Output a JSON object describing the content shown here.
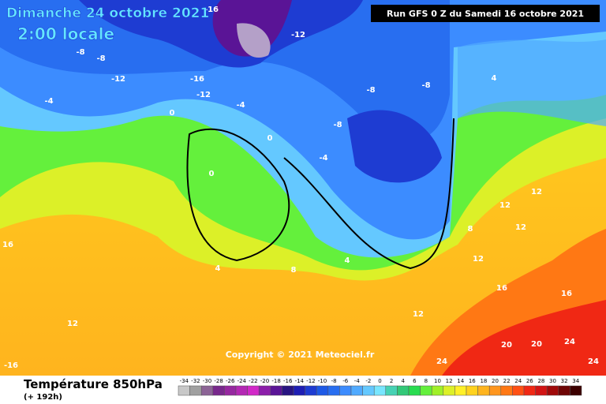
{
  "header": {
    "date": "Dimanche 24 octobre 2021",
    "time": "2:00 locale",
    "run": "Run GFS 0 Z du Samedi 16 octobre 2021"
  },
  "copyright": "Copyright © 2021 Meteociel.fr",
  "footer": {
    "title": "Température 850hPa",
    "lead": "(+ 192h)"
  },
  "legend": {
    "labels": [
      "-34",
      "-32",
      "-30",
      "-28",
      "-26",
      "-24",
      "-22",
      "-20",
      "-18",
      "-16",
      "-14",
      "-12",
      "-10",
      "-8",
      "-6",
      "-4",
      "-2",
      "0",
      "2",
      "4",
      "6",
      "8",
      "10",
      "12",
      "14",
      "16",
      "18",
      "20",
      "22",
      "24",
      "26",
      "28",
      "30",
      "32",
      "34"
    ],
    "colors": [
      "#c8c8c8",
      "#a0a0a0",
      "#8c6496",
      "#78288c",
      "#9628a0",
      "#b428b4",
      "#d228c8",
      "#8c1eaa",
      "#5a1496",
      "#281482",
      "#1e1eb4",
      "#1e3cd2",
      "#1e5ae6",
      "#286ef0",
      "#3c8cff",
      "#50aaff",
      "#64c8ff",
      "#78e6ff",
      "#46d2b4",
      "#32c878",
      "#28dc50",
      "#64f03c",
      "#a0f028",
      "#dcf028",
      "#fff028",
      "#ffd21e",
      "#ffb41e",
      "#ff961e",
      "#ff7814",
      "#ff5014",
      "#f02814",
      "#d21414",
      "#a00a0a",
      "#6e0505",
      "#3c0000"
    ]
  },
  "map": {
    "labels": [
      "-16",
      "-12",
      "-16",
      "-12",
      "-8",
      "-12",
      "-8",
      "-4",
      "0",
      "-4",
      "-8",
      "-8",
      "-4",
      "-8",
      "0",
      "0",
      "4",
      "4",
      "4",
      "8",
      "8",
      "12",
      "12",
      "12",
      "12",
      "16",
      "12",
      "16",
      "20",
      "20",
      "24",
      "24",
      "24",
      "-16",
      "12",
      "16"
    ]
  }
}
